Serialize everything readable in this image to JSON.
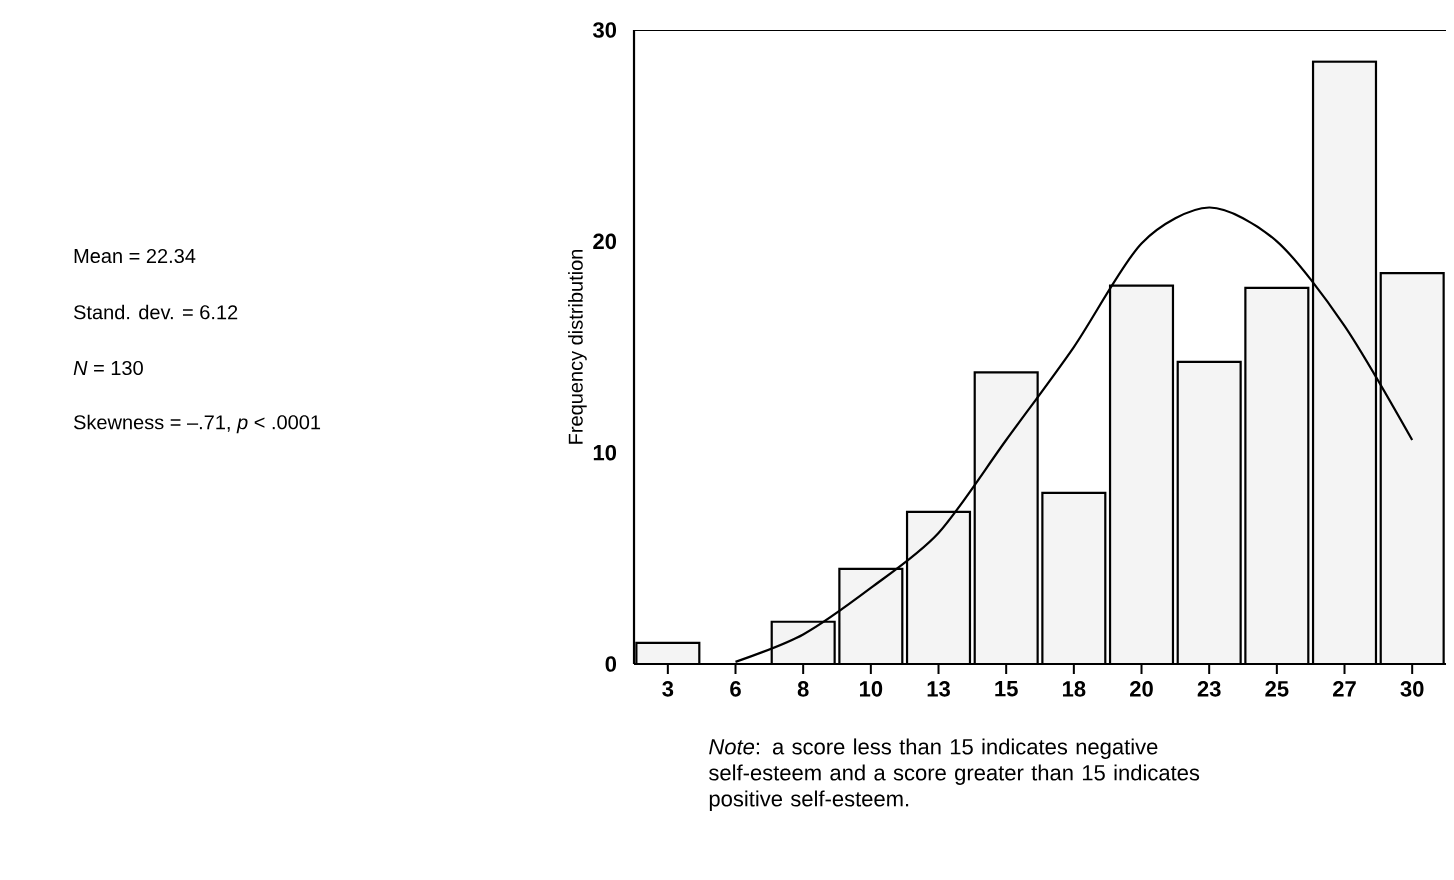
{
  "chart_data": {
    "type": "bar",
    "ylabel": "Frequency distribution",
    "categories": [
      "3",
      "6",
      "8",
      "10",
      "13",
      "15",
      "18",
      "20",
      "23",
      "25",
      "27",
      "30"
    ],
    "series": [
      {
        "color": "#f4f4f4",
        "values": [
          1,
          0,
          2,
          4.5,
          7.2,
          13.8,
          8.1,
          17.9,
          14.3,
          17.8,
          28.5,
          18.5
        ]
      },
      {
        "type": "line",
        "color": "#000000",
        "values": [
          null,
          0.1,
          1.4,
          3.6,
          6.2,
          10.6,
          15.0,
          19.9,
          21.6,
          20.0,
          16.0,
          10.6
        ]
      }
    ],
    "ylim": [
      0,
      30
    ],
    "yticks": [
      0,
      10,
      20,
      30
    ],
    "annotations": [
      "Mean = 22.34",
      "Stand. dev. = 6.12",
      "*N* = 130",
      "Skewness = –.71, *p* < .0001",
      "*Note*: a score less than 15 indicates negative self-esteem and a score greater than 15 indicates positive self-esteem."
    ]
  }
}
